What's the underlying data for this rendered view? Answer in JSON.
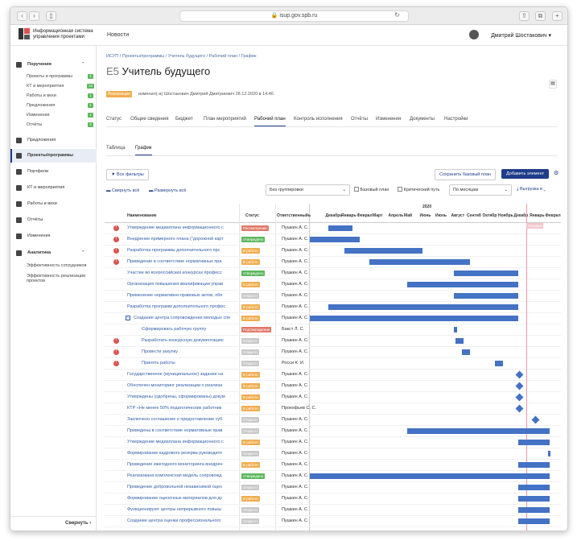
{
  "browser": {
    "url": "isup.gov.spb.ru"
  },
  "brand": {
    "line1": "Информационная система",
    "line2": "управления проектами"
  },
  "topnav": {
    "news": "Новости",
    "user": "Дмитрий Шостакович"
  },
  "sidebar": {
    "sections": [
      {
        "label": "Поручения",
        "items": [
          {
            "label": "Проекты и программы",
            "count": "1"
          },
          {
            "label": "КТ и мероприятия",
            "count": "13"
          },
          {
            "label": "Работы и вехи",
            "count": "1"
          },
          {
            "label": "Предложения",
            "count": "1"
          },
          {
            "label": "Изменения",
            "count": "1"
          },
          {
            "label": "Отчёты",
            "count": "3"
          }
        ]
      },
      {
        "label": "Предложения"
      },
      {
        "label": "Проекты/программы"
      },
      {
        "label": "Портфели"
      },
      {
        "label": "КТ и мероприятия"
      },
      {
        "label": "Работы и вехи"
      },
      {
        "label": "Отчёты"
      },
      {
        "label": "Изменения"
      },
      {
        "label": "Аналитика",
        "items": [
          {
            "label": "Эффективность сотрудников"
          },
          {
            "label": "Эффективность реализации проектов"
          }
        ]
      }
    ],
    "collapse": "Свернуть"
  },
  "breadcrumb": "ИСУП / Проекты/программы / Учитель будущего / Рабочий план / График",
  "project": {
    "code": "Е5",
    "name": "Учитель будущего",
    "status": "Реализация",
    "modified": "изменил(-а) Шостакович Дмитрий Дмитриевич 28.12.2020 в 14:46"
  },
  "tabs": [
    "Статус",
    "Общие сведения",
    "Бюджет",
    "План мероприятий",
    "Рабочий план",
    "Контроль исполнения",
    "Отчёты",
    "Изменения",
    "Документы",
    "Настройки"
  ],
  "subtabs": [
    "Таблица",
    "График"
  ],
  "toolbar": {
    "filters": "Все фильтры",
    "save_base": "Сохранить базовый план",
    "add": "Добавить элемент",
    "collapse": "Свернуть всё",
    "expand": "Развернуть всё",
    "grouping": "Без группировки",
    "base_plan": "Базовый план",
    "critical": "Критический путь",
    "scale": "По месяцам",
    "export": "Выгрузка в"
  },
  "columns": {
    "name": "Наименование",
    "status": "Статус",
    "resp": "Ответственный"
  },
  "gantt": {
    "year": "2020",
    "months": [
      "ь",
      "Декабрь",
      "Январь",
      "Феврал",
      "Март",
      "Апрель",
      "Май",
      "Июнь",
      "Июль",
      "Август",
      "Сентяб",
      "Октябр",
      "Ноябрь",
      "Декабр",
      "Январь",
      "Феврал"
    ],
    "today": "Сегодня"
  },
  "colors": {
    "accent": "#1f3d8a",
    "bar": "#4472c4",
    "work": "#f0ad4e",
    "approved": "#5cb85c",
    "open": "#c8c8c8",
    "confirm": "#e07a6a"
  },
  "rows": [
    {
      "name": "Утверждение медиаплана информационного с",
      "status": "Рассмотрение",
      "resp": "Пушкин А. С.",
      "alert": true,
      "bar": [
        1.2,
        2.7
      ],
      "lv": 0
    },
    {
      "name": "Внедрение примерного плана (\"дорожной карт",
      "status": "Утверждено",
      "resp": "Пушкин А. С.",
      "alert": true,
      "bar": [
        0,
        3.2
      ],
      "lv": 0
    },
    {
      "name": "Разработка программы дополнительного прс",
      "status": "В работе",
      "resp": "Пушкин А. С.",
      "alert": true,
      "bar": [
        2.2,
        7.2
      ],
      "lv": 0
    },
    {
      "name": "Приведение в соответствие нормативных пра",
      "status": "В работе",
      "resp": "Пушкин А. С.",
      "alert": true,
      "bar": [
        3.8,
        10.2
      ],
      "lv": 0
    },
    {
      "name": "Участие во всероссийских конкурсах професс",
      "status": "Утверждено",
      "resp": "Пушкин А. С.",
      "bar": [
        9.2,
        13.3
      ],
      "lv": 0
    },
    {
      "name": "Организация повышения квалификации управ",
      "status": "В работе",
      "resp": "Пушкин А. С.",
      "bar": [
        6.2,
        13.3
      ],
      "lv": 0
    },
    {
      "name": "Применение нормативно-правовых актов, обе",
      "status": "Открыто",
      "resp": "Пушкин А. С.",
      "bar": [
        9.2,
        13.3
      ],
      "lv": 0
    },
    {
      "name": "Разработка программ дополнительного профес",
      "status": "В работе",
      "resp": "Пушкин А. С.",
      "bar": [
        1.2,
        13.3
      ],
      "lv": 0
    },
    {
      "name": "Создание центра сопровождения молодых спе",
      "status": "В работе",
      "resp": "Пушкин А. С.",
      "bar": [
        0,
        13.3
      ],
      "lv": 0,
      "group": true
    },
    {
      "name": "Сформировать рабочую группу",
      "status": "Подтверждение",
      "resp": "Бакст Л. С.",
      "bar": [
        9.2,
        9.4
      ],
      "lv": 1
    },
    {
      "name": "Разработать конкурсную документацию",
      "status": "Открыто",
      "resp": "Пушкин А. С.",
      "alert": true,
      "bar": [
        9.3,
        9.8
      ],
      "lv": 1
    },
    {
      "name": "Провести закупку",
      "status": "Открыто",
      "resp": "Пушкин А. С.",
      "alert": true,
      "bar": [
        9.7,
        10.2
      ],
      "lv": 1
    },
    {
      "name": "Принять работы",
      "status": "Открыто",
      "resp": "Росси К. И.",
      "alert": true,
      "bar": [
        11.8,
        12.3
      ],
      "lv": 1
    },
    {
      "name": "Государственное (муниципальное) задание на",
      "status": "В работе",
      "resp": "Пушкин А. С.",
      "ms": 13.2,
      "lv": 0
    },
    {
      "name": "Обеспечен мониторинг реализации о реализа",
      "status": "В работе",
      "resp": "Пушкин А. С.",
      "ms": 13.2,
      "lv": 0
    },
    {
      "name": "Утверждены (одобрены, сформированы) докум",
      "status": "В работе",
      "resp": "Пушкин А. С.",
      "ms": 13.2,
      "lv": 0
    },
    {
      "name": "КТР «Не менее 50% педагогических работник",
      "status": "В работе",
      "resp": "Прокофьев С. С.",
      "ms": 13.2,
      "lv": 0
    },
    {
      "name": "Заключено соглашение о предоставление суб",
      "status": "Открыто",
      "resp": "Пушкин А. С.",
      "ms": 14.2,
      "lv": 0
    },
    {
      "name": "Приведены в соответствие нормативные прав",
      "status": "Открыто",
      "resp": "Пушкин А. С.",
      "bar": [
        6.2,
        15.3
      ],
      "lv": 0
    },
    {
      "name": "Утверждение медиаплана информационного с",
      "status": "В работе",
      "resp": "Пушкин А. С.",
      "bar": [
        13.3,
        15.3
      ],
      "lv": 0
    },
    {
      "name": "Формирование кадрового резерва руководите",
      "status": "Открыто",
      "resp": "Пушкин А. С.",
      "bar": [
        15.2,
        15.3
      ],
      "lv": 0
    },
    {
      "name": "Проведение ежегодного мониторинга внедрен",
      "status": "В работе",
      "resp": "Пушкин А. С.",
      "bar": [
        13.3,
        15.3
      ],
      "lv": 0
    },
    {
      "name": "Реализована комплексная модель сопровожд",
      "status": "Утверждено",
      "resp": "Пушкин А. С.",
      "bar": [
        0,
        15.3
      ],
      "lv": 0
    },
    {
      "name": "Проведение добровольной независимой оцен",
      "status": "Открыто",
      "resp": "Пушкин А. С.",
      "bar": [
        13.3,
        15.3
      ],
      "lv": 0
    },
    {
      "name": "Формирование оценочных материалов для дс",
      "status": "В работе",
      "resp": "Пушкин А. С.",
      "bar": [
        13.3,
        15.3
      ],
      "lv": 0
    },
    {
      "name": "Функционируют центры непрерывного повыш",
      "status": "Открыто",
      "resp": "Пушкин А. С.",
      "bar": [
        13.3,
        15.3
      ],
      "lv": 0
    },
    {
      "name": "Создание центра оценки профессионального",
      "status": "Открыто",
      "resp": "Пушкин А. С.",
      "bar": [
        13.3,
        15.3
      ],
      "lv": 0
    }
  ]
}
